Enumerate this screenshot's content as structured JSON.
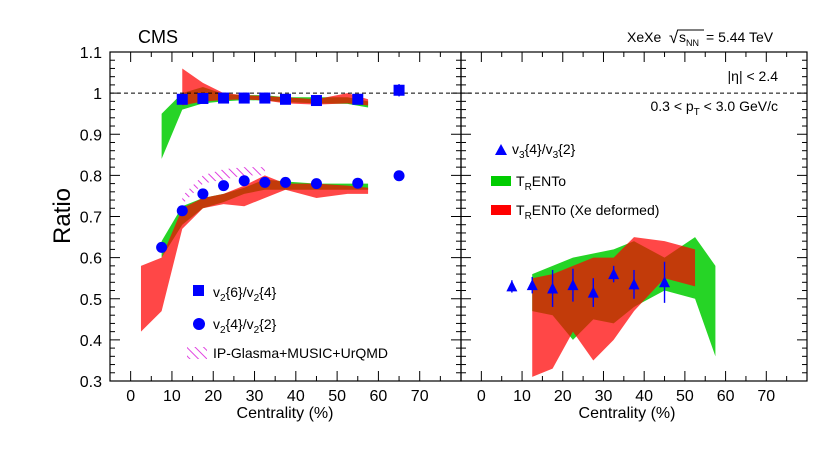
{
  "chart_data": {
    "type": "scatter",
    "experiment": "CMS",
    "system_label": "XeXe",
    "energy_label": "= 5.44 TeV",
    "ylabel": "Ratio",
    "ylim": [
      0.3,
      1.1
    ],
    "yticks": [
      "0.3",
      "0.4",
      "0.5",
      "0.6",
      "0.7",
      "0.8",
      "0.9",
      "1",
      "1.1"
    ],
    "reference_line": 1.0,
    "panels": [
      {
        "id": "left",
        "xlabel": "Centrality (%)",
        "xlim": [
          -5,
          80
        ],
        "xticks": [
          "0",
          "10",
          "20",
          "30",
          "40",
          "50",
          "60",
          "70"
        ],
        "legend": [
          {
            "key": "v26v24",
            "label": "v₂{6}/v₂{4}",
            "marker": "square",
            "color": "#0000ff"
          },
          {
            "key": "v24v22",
            "label": "v₂{4}/v₂{2}",
            "marker": "circle",
            "color": "#0000ff"
          },
          {
            "key": "ipglasma",
            "label": "IP-Glasma+MUSIC+UrQMD",
            "marker": "hatched",
            "color": "#e040e0"
          }
        ],
        "series": [
          {
            "name": "v2{6}/v2{4}",
            "marker": "square",
            "color": "#0000ff",
            "x": [
              12.5,
              17.5,
              22.5,
              27.5,
              32.5,
              37.5,
              45,
              55,
              65
            ],
            "y": [
              0.985,
              0.987,
              0.988,
              0.988,
              0.988,
              0.985,
              0.982,
              0.985,
              1.007
            ],
            "err": [
              0.008,
              0.006,
              0.006,
              0.006,
              0.006,
              0.006,
              0.007,
              0.008,
              0.015
            ]
          },
          {
            "name": "v2{4}/v2{2}",
            "marker": "circle",
            "color": "#0000ff",
            "x": [
              7.5,
              12.5,
              17.5,
              22.5,
              27.5,
              32.5,
              37.5,
              45,
              55,
              65
            ],
            "y": [
              0.625,
              0.714,
              0.755,
              0.775,
              0.787,
              0.783,
              0.783,
              0.78,
              0.781,
              0.799
            ],
            "err": [
              0.005,
              0.005,
              0.004,
              0.004,
              0.004,
              0.004,
              0.004,
              0.004,
              0.005,
              0.005
            ]
          }
        ],
        "bands": [
          {
            "name": "v2{6}/v2{4} TRENTo",
            "color": "#00cc00",
            "x": [
              7.5,
              12.5,
              17.5,
              22.5,
              27.5,
              32.5,
              37.5,
              45,
              52.5,
              57.5
            ],
            "low": [
              0.84,
              0.96,
              0.975,
              0.98,
              0.983,
              0.982,
              0.978,
              0.975,
              0.974,
              0.965
            ],
            "high": [
              0.95,
              1.0,
              1.015,
              0.998,
              0.995,
              0.995,
              0.99,
              0.99,
              0.99,
              0.98
            ]
          },
          {
            "name": "v2{6}/v2{4} TRENTo (Xe deformed)",
            "color": "#ff0000",
            "x": [
              12.5,
              17.5,
              22.5,
              27.5,
              32.5,
              37.5,
              45,
              52.5,
              57.5
            ],
            "low": [
              0.97,
              0.98,
              0.983,
              0.985,
              0.982,
              0.975,
              0.972,
              0.975,
              0.97
            ],
            "high": [
              1.06,
              1.025,
              1.0,
              0.995,
              0.993,
              0.99,
              0.985,
              1.0,
              0.985
            ]
          },
          {
            "name": "v2{4}/v2{2} TRENTo",
            "color": "#00cc00",
            "x": [
              7.5,
              12.5,
              17.5,
              22.5,
              27.5,
              32.5,
              37.5,
              45,
              52.5,
              57.5
            ],
            "low": [
              0.6,
              0.68,
              0.72,
              0.735,
              0.755,
              0.765,
              0.765,
              0.765,
              0.765,
              0.765
            ],
            "high": [
              0.64,
              0.725,
              0.745,
              0.755,
              0.77,
              0.79,
              0.785,
              0.78,
              0.78,
              0.78
            ]
          },
          {
            "name": "v2{4}/v2{2} TRENTo (Xe deformed)",
            "color": "#ff0000",
            "x": [
              2.5,
              7.5,
              12.5,
              17.5,
              22.5,
              27.5,
              32.5,
              37.5,
              45,
              52.5,
              57.5
            ],
            "low": [
              0.42,
              0.47,
              0.67,
              0.72,
              0.73,
              0.725,
              0.745,
              0.765,
              0.745,
              0.755,
              0.755
            ],
            "high": [
              0.58,
              0.6,
              0.72,
              0.745,
              0.755,
              0.775,
              0.8,
              0.78,
              0.78,
              0.775,
              0.77
            ]
          },
          {
            "name": "IP-Glasma+MUSIC+UrQMD",
            "color": "#e040e0",
            "hatched": true,
            "x": [
              12.5,
              17.5,
              22.5,
              27.5,
              32.5
            ],
            "low": [
              0.73,
              0.78,
              0.79,
              0.8,
              0.8
            ],
            "high": [
              0.75,
              0.8,
              0.815,
              0.82,
              0.82
            ]
          }
        ]
      },
      {
        "id": "right",
        "xlabel": "Centrality (%)",
        "xlim": [
          -5,
          80
        ],
        "xticks": [
          "0",
          "10",
          "20",
          "30",
          "40",
          "50",
          "60",
          "70"
        ],
        "annotations": [
          "|η| < 2.4",
          "0.3 < p_T < 3.0 GeV/c"
        ],
        "legend": [
          {
            "key": "v34v32",
            "label": "v₃{4}/v₃{2}",
            "marker": "triangle",
            "color": "#0000ff"
          },
          {
            "key": "trento",
            "label": "TRENTo",
            "marker": "box",
            "color": "#00cc00"
          },
          {
            "key": "trento_def",
            "label": "TRENTo (Xe deformed)",
            "marker": "box",
            "color": "#ff0000"
          }
        ],
        "series": [
          {
            "name": "v3{4}/v3{2}",
            "marker": "triangle",
            "color": "#0000ff",
            "x": [
              7.5,
              12.5,
              17.5,
              22.5,
              27.5,
              32.5,
              37.5,
              45
            ],
            "y": [
              0.53,
              0.533,
              0.525,
              0.533,
              0.515,
              0.56,
              0.535,
              0.54
            ],
            "err": [
              0.015,
              0.02,
              0.045,
              0.04,
              0.035,
              0.02,
              0.035,
              0.05
            ]
          }
        ],
        "bands": [
          {
            "name": "v3{4}/v3{2} TRENTo",
            "color": "#00cc00",
            "x": [
              12.5,
              17.5,
              22.5,
              27.5,
              32.5,
              37.5,
              45,
              52.5,
              57.5
            ],
            "low": [
              0.47,
              0.46,
              0.4,
              0.45,
              0.44,
              0.48,
              0.52,
              0.5,
              0.36
            ],
            "high": [
              0.56,
              0.58,
              0.6,
              0.61,
              0.62,
              0.64,
              0.6,
              0.65,
              0.58
            ]
          },
          {
            "name": "v3{4}/v3{2} TRENTo (Xe deformed)",
            "color": "#ff0000",
            "x": [
              12.5,
              17.5,
              22.5,
              27.5,
              32.5,
              37.5,
              45,
              52.5
            ],
            "low": [
              0.31,
              0.33,
              0.42,
              0.35,
              0.4,
              0.47,
              0.55,
              0.53
            ],
            "high": [
              0.55,
              0.56,
              0.58,
              0.6,
              0.6,
              0.65,
              0.64,
              0.62
            ]
          }
        ]
      }
    ]
  }
}
